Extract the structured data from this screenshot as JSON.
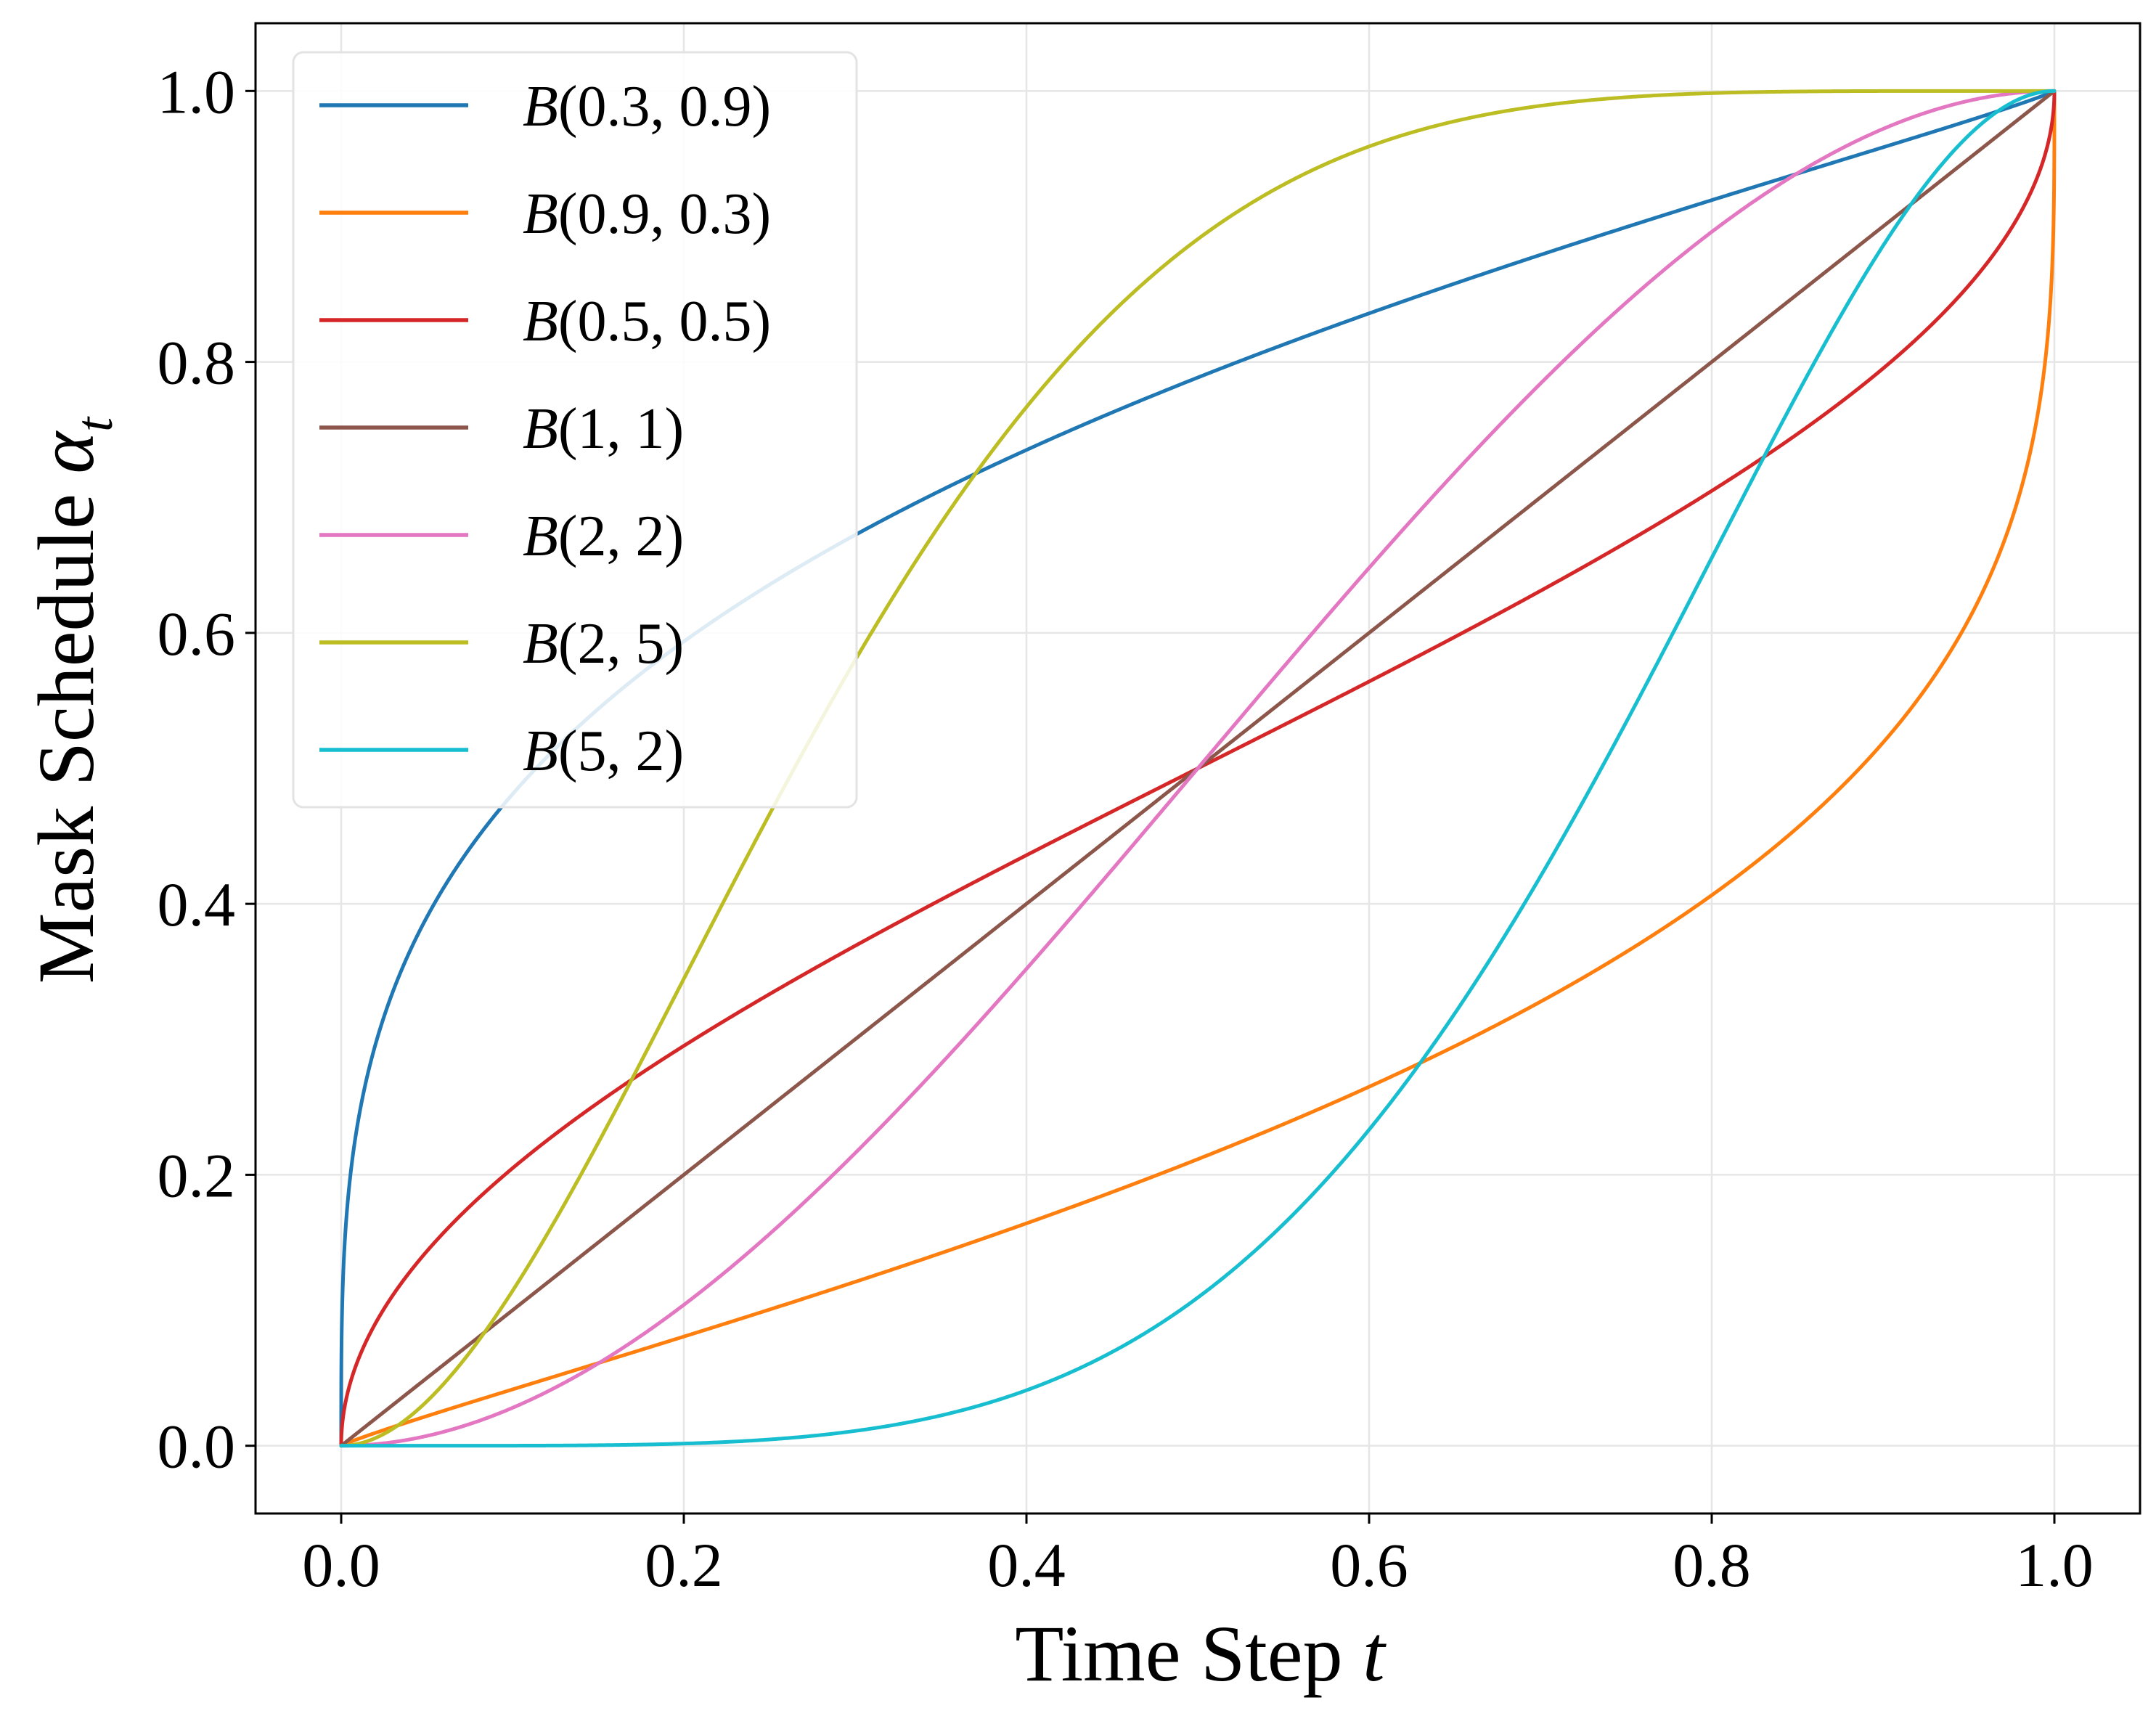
{
  "chart_data": {
    "type": "line",
    "title": "",
    "xlabel": "Time Step",
    "xlabel_var": "t",
    "ylabel": "Mask Schedule",
    "ylabel_var": "α",
    "ylabel_sub": "t",
    "xlim": [
      -0.05,
      1.05
    ],
    "ylim": [
      -0.05,
      1.05
    ],
    "xticks": [
      0.0,
      0.2,
      0.4,
      0.6,
      0.8,
      1.0
    ],
    "yticks": [
      0.0,
      0.2,
      0.4,
      0.6,
      0.8,
      1.0
    ],
    "xtick_labels": [
      "0.0",
      "0.2",
      "0.4",
      "0.6",
      "0.8",
      "1.0"
    ],
    "ytick_labels": [
      "0.0",
      "0.2",
      "0.4",
      "0.6",
      "0.8",
      "1.0"
    ],
    "grid": true,
    "legend_position": "top-left",
    "series": [
      {
        "name": "B(0.3, 0.9)",
        "fn": "B",
        "args": "(0.3, 0.9)",
        "a": 0.3,
        "b": 0.9,
        "color": "#1f77b4"
      },
      {
        "name": "B(0.9, 0.3)",
        "fn": "B",
        "args": "(0.9, 0.3)",
        "a": 0.9,
        "b": 0.3,
        "color": "#ff7f0e"
      },
      {
        "name": "B(0.5, 0.5)",
        "fn": "B",
        "args": "(0.5, 0.5)",
        "a": 0.5,
        "b": 0.5,
        "color": "#d62728"
      },
      {
        "name": "B(1, 1)",
        "fn": "B",
        "args": "(1, 1)",
        "a": 1,
        "b": 1,
        "color": "#8c564b"
      },
      {
        "name": "B(2, 2)",
        "fn": "B",
        "args": "(2, 2)",
        "a": 2,
        "b": 2,
        "color": "#e377c2"
      },
      {
        "name": "B(2, 5)",
        "fn": "B",
        "args": "(2, 5)",
        "a": 2,
        "b": 5,
        "color": "#bcbd22"
      },
      {
        "name": "B(5, 2)",
        "fn": "B",
        "args": "(5, 2)",
        "a": 5,
        "b": 2,
        "color": "#17becf"
      }
    ]
  }
}
